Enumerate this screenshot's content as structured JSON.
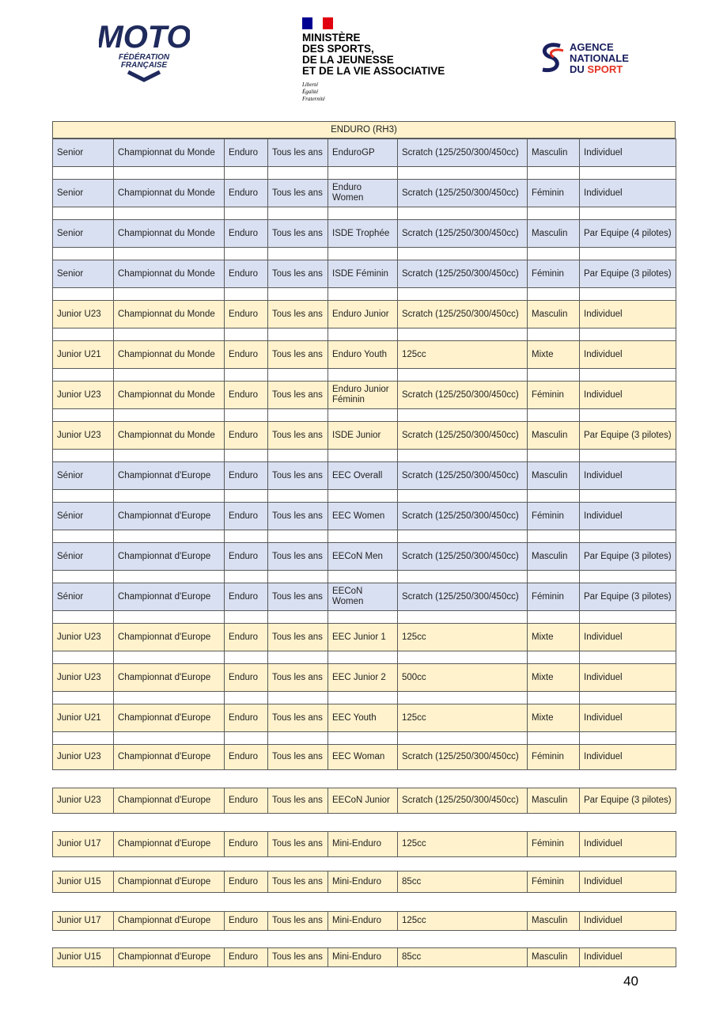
{
  "header": {
    "fede_logo": {
      "big": "MOTO",
      "line1": "FÉDÉRATION",
      "line2": "FRANÇAISE"
    },
    "ministry": {
      "line1": "MINISTÈRE",
      "line2": "DES SPORTS,",
      "line3": "DE LA JEUNESSE",
      "line4": "ET DE LA VIE ASSOCIATIVE",
      "motto1": "Liberté",
      "motto2": "Égalité",
      "motto3": "Fraternité"
    },
    "agency": {
      "line1": "AGENCE",
      "line2": "NATIONALE",
      "line3a": "DU",
      "line3b": "SPORT"
    }
  },
  "table": {
    "title": "ENDURO (RH3)",
    "rows": [
      {
        "color": "#d9e0f1",
        "cells": [
          "Senior",
          "Championnat du Monde",
          "Enduro",
          "Tous les ans",
          "EnduroGP",
          "Scratch (125/250/300/450cc)",
          "Masculin",
          "Individuel"
        ]
      },
      {
        "color": "#d9e0f1",
        "cells": [
          "Senior",
          "Championnat du Monde",
          "Enduro",
          "Tous les ans",
          "Enduro Women",
          "Scratch (125/250/300/450cc)",
          "Féminin",
          "Individuel"
        ]
      },
      {
        "color": "#d9e0f1",
        "cells": [
          "Senior",
          "Championnat du Monde",
          "Enduro",
          "Tous les ans",
          "ISDE Trophée",
          "Scratch (125/250/300/450cc)",
          "Masculin",
          "Par Equipe (4 pilotes)"
        ]
      },
      {
        "color": "#d9e0f1",
        "cells": [
          "Senior",
          "Championnat du Monde",
          "Enduro",
          "Tous les ans",
          "ISDE Féminin",
          "Scratch (125/250/300/450cc)",
          "Féminin",
          "Par Equipe (3 pilotes)"
        ]
      },
      {
        "color": "#fff2cc",
        "cells": [
          "Junior U23",
          "Championnat du Monde",
          "Enduro",
          "Tous les ans",
          "Enduro Junior",
          "Scratch (125/250/300/450cc)",
          "Masculin",
          "Individuel"
        ]
      },
      {
        "color": "#fff2cc",
        "cells": [
          "Junior U21",
          "Championnat du Monde",
          "Enduro",
          "Tous les ans",
          "Enduro Youth",
          "125cc",
          "Mixte",
          "Individuel"
        ]
      },
      {
        "color": "#fff2cc",
        "cells": [
          "Junior U23",
          "Championnat du Monde",
          "Enduro",
          "Tous les ans",
          "Enduro Junior Féminin",
          "Scratch (125/250/300/450cc)",
          "Féminin",
          "Individuel"
        ]
      },
      {
        "color": "#fff2cc",
        "cells": [
          "Junior U23",
          "Championnat du Monde",
          "Enduro",
          "Tous les ans",
          "ISDE Junior",
          "Scratch (125/250/300/450cc)",
          "Masculin",
          "Par Equipe (3 pilotes)"
        ]
      },
      {
        "color": "#d9e0f1",
        "cells": [
          "Sénior",
          "Championnat d'Europe",
          "Enduro",
          "Tous les ans",
          "EEC Overall",
          "Scratch (125/250/300/450cc)",
          "Masculin",
          "Individuel"
        ]
      },
      {
        "color": "#d9e0f1",
        "cells": [
          "Sénior",
          "Championnat d'Europe",
          "Enduro",
          "Tous les ans",
          "EEC Women",
          "Scratch (125/250/300/450cc)",
          "Féminin",
          "Individuel"
        ]
      },
      {
        "color": "#d9e0f1",
        "cells": [
          "Sénior",
          "Championnat d'Europe",
          "Enduro",
          "Tous les ans",
          "EECoN Men",
          "Scratch (125/250/300/450cc)",
          "Masculin",
          "Par Equipe (3 pilotes)"
        ]
      },
      {
        "color": "#d9e0f1",
        "cells": [
          "Sénior",
          "Championnat d'Europe",
          "Enduro",
          "Tous les ans",
          "EECoN Women",
          "Scratch (125/250/300/450cc)",
          "Féminin",
          "Par Equipe (3 pilotes)"
        ]
      },
      {
        "color": "#fff2cc",
        "cells": [
          "Junior U23",
          "Championnat d'Europe",
          "Enduro",
          "Tous les ans",
          "EEC Junior 1",
          "125cc",
          "Mixte",
          "Individuel"
        ]
      },
      {
        "color": "#fff2cc",
        "cells": [
          "Junior U23",
          "Championnat d'Europe",
          "Enduro",
          "Tous les ans",
          "EEC Junior 2",
          "500cc",
          "Mixte",
          "Individuel"
        ]
      },
      {
        "color": "#fff2cc",
        "cells": [
          "Junior U21",
          "Championnat d'Europe",
          "Enduro",
          "Tous les ans",
          "EEC Youth",
          "125cc",
          "Mixte",
          "Individuel"
        ]
      },
      {
        "color": "#fff2cc",
        "cells": [
          "Junior U23",
          "Championnat d'Europe",
          "Enduro",
          "Tous les ans",
          "EEC Woman",
          "Scratch (125/250/300/450cc)",
          "Féminin",
          "Individuel"
        ]
      },
      {
        "color": "#fff2cc",
        "cells": [
          "Junior U23",
          "Championnat d'Europe",
          "Enduro",
          "Tous les ans",
          "EECoN Junior",
          "Scratch (125/250/300/450cc)",
          "Masculin",
          "Par Equipe (3 pilotes)"
        ]
      },
      {
        "color": "#fff2cc",
        "cells": [
          "Junior U17",
          "Championnat d'Europe",
          "Enduro",
          "Tous les ans",
          "Mini-Enduro",
          "125cc",
          "Féminin",
          "Individuel"
        ]
      },
      {
        "color": "#fff2cc",
        "cells": [
          "Junior U15",
          "Championnat d'Europe",
          "Enduro",
          "Tous les ans",
          "Mini-Enduro",
          "85cc",
          "Féminin",
          "Individuel"
        ]
      },
      {
        "color": "#fff2cc",
        "cells": [
          "Junior U17",
          "Championnat d'Europe",
          "Enduro",
          "Tous les ans",
          "Mini-Enduro",
          "125cc",
          "Masculin",
          "Individuel"
        ]
      },
      {
        "color": "#fff2cc",
        "cells": [
          "Junior U15",
          "Championnat d'Europe",
          "Enduro",
          "Tous les ans",
          "Mini-Enduro",
          "85cc",
          "Masculin",
          "Individuel"
        ]
      }
    ]
  },
  "page_number": "40"
}
